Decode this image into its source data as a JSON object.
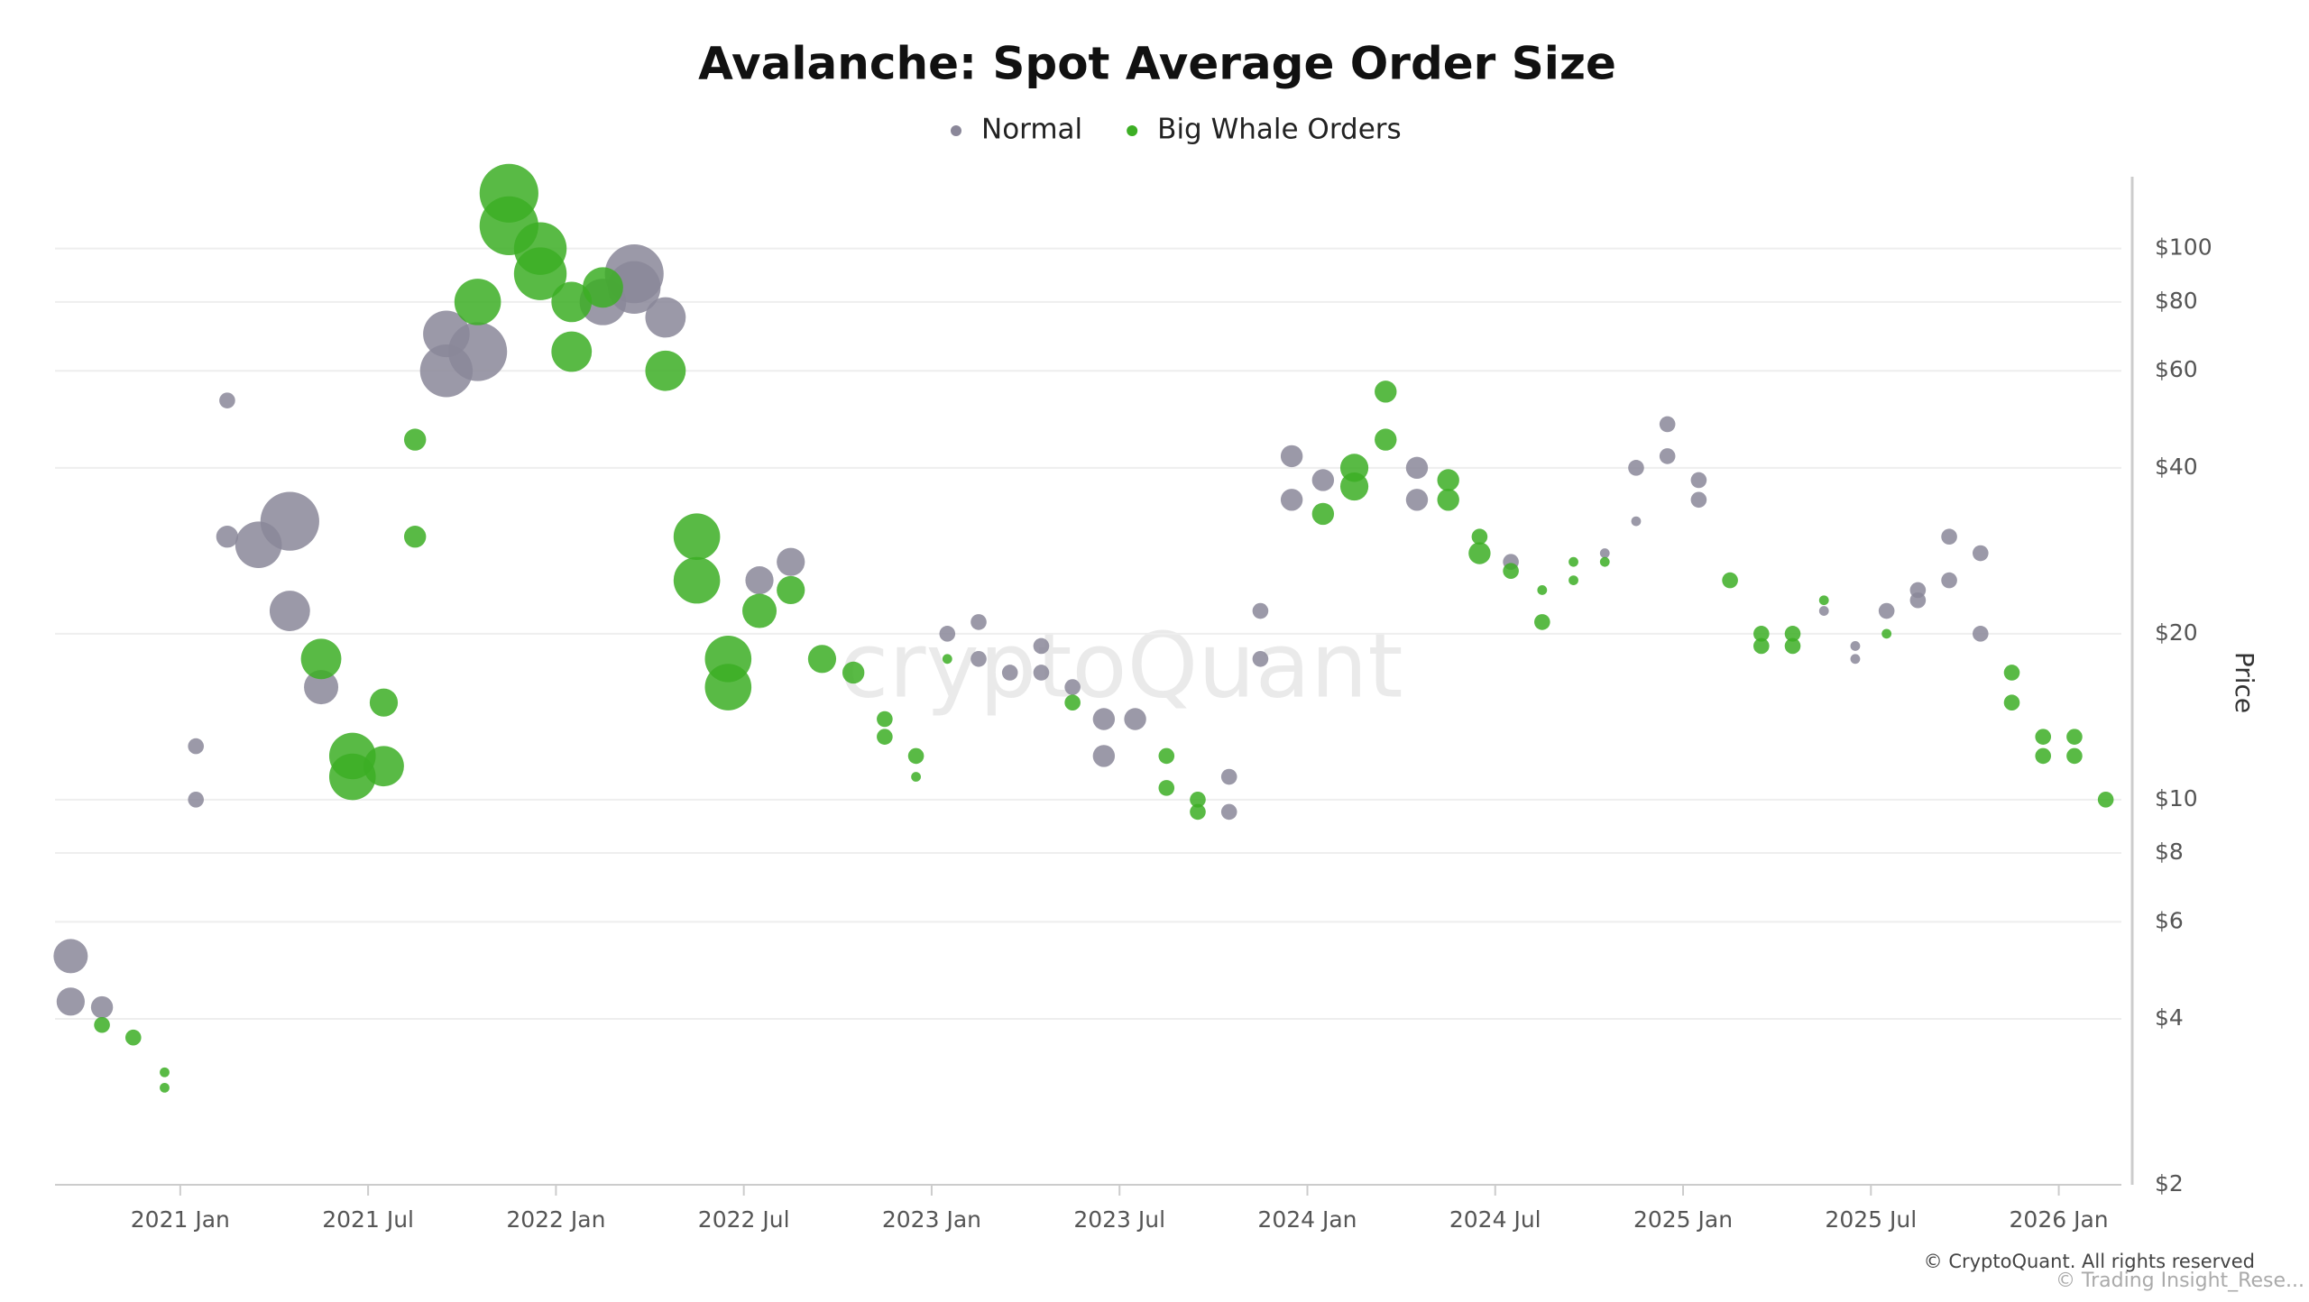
{
  "chart_data": {
    "type": "scatter",
    "title": "Avalanche: Spot Average Order Size",
    "y_label": "Price",
    "watermark": "cryptoQuant",
    "copyright": "© CryptoQuant. All rights reserved",
    "credit": "© Trading Insight_Rese...",
    "log_y": true,
    "grid": true,
    "legend": "top",
    "xlim": [
      "2020-09",
      "2026-03"
    ],
    "xticks": [
      {
        "value": "2021-01",
        "label": "2021 Jan"
      },
      {
        "value": "2021-07",
        "label": "2021 Jul"
      },
      {
        "value": "2022-01",
        "label": "2022 Jan"
      },
      {
        "value": "2022-07",
        "label": "2022 Jul"
      },
      {
        "value": "2023-01",
        "label": "2023 Jan"
      },
      {
        "value": "2023-07",
        "label": "2023 Jul"
      },
      {
        "value": "2024-01",
        "label": "2024 Jan"
      },
      {
        "value": "2024-07",
        "label": "2024 Jul"
      },
      {
        "value": "2025-01",
        "label": "2025 Jan"
      },
      {
        "value": "2025-07",
        "label": "2025 Jul"
      },
      {
        "value": "2026-01",
        "label": "2026 Jan"
      }
    ],
    "ylim": [
      2,
      135
    ],
    "yticks": [
      {
        "value": 2,
        "label": "$2"
      },
      {
        "value": 4,
        "label": "$4"
      },
      {
        "value": 6,
        "label": "$6"
      },
      {
        "value": 8,
        "label": "$8"
      },
      {
        "value": 10,
        "label": "$10"
      },
      {
        "value": 20,
        "label": "$20"
      },
      {
        "value": 40,
        "label": "$40"
      },
      {
        "value": 60,
        "label": "$60"
      },
      {
        "value": 80,
        "label": "$80"
      },
      {
        "value": 100,
        "label": "$100"
      }
    ],
    "series": [
      {
        "name": "Normal",
        "color": "#8a8799",
        "x": [
          "2020-09",
          "2020-09",
          "2020-10",
          "2021-01",
          "2021-01",
          "2021-02",
          "2021-02",
          "2021-03",
          "2021-04",
          "2021-04",
          "2021-05",
          "2021-09",
          "2021-09",
          "2021-10",
          "2022-02",
          "2022-03",
          "2022-03",
          "2022-04",
          "2022-07",
          "2022-08",
          "2023-01",
          "2023-02",
          "2023-02",
          "2023-03",
          "2023-04",
          "2023-04",
          "2023-05",
          "2023-06",
          "2023-06",
          "2023-07",
          "2023-10",
          "2023-10",
          "2023-11",
          "2023-11",
          "2023-12",
          "2023-12",
          "2024-01",
          "2024-04",
          "2024-04",
          "2024-07",
          "2024-10",
          "2024-11",
          "2024-11",
          "2024-12",
          "2024-12",
          "2025-01",
          "2025-01",
          "2025-05",
          "2025-06",
          "2025-06",
          "2025-07",
          "2025-08",
          "2025-08",
          "2025-09",
          "2025-09",
          "2025-10",
          "2025-10"
        ],
        "values": [
          5.2,
          4.3,
          4.2,
          10,
          12.5,
          53,
          30,
          29,
          32,
          22,
          16,
          60,
          70,
          65,
          80,
          85,
          90,
          75,
          25,
          27,
          20,
          21,
          18,
          17,
          19,
          17,
          16,
          12,
          14,
          14,
          9.5,
          11,
          18,
          22,
          35,
          42,
          38,
          40,
          35,
          27,
          28,
          32,
          40,
          48,
          42,
          38,
          35,
          22,
          19,
          18,
          22,
          24,
          23,
          25,
          30,
          28,
          20
        ],
        "sizes": [
          5,
          4,
          3,
          2,
          2,
          2,
          3,
          7,
          9,
          6,
          5,
          8,
          7,
          9,
          7,
          8,
          9,
          6,
          4,
          4,
          2,
          2,
          2,
          2,
          2,
          2,
          2,
          3,
          3,
          3,
          2,
          2,
          2,
          2,
          3,
          3,
          3,
          3,
          3,
          2,
          1,
          1,
          2,
          2,
          2,
          2,
          2,
          1,
          1,
          1,
          2,
          2,
          2,
          2,
          2,
          2,
          2
        ]
      },
      {
        "name": "Big Whale Orders",
        "color": "#3cae24",
        "x": [
          "2020-10",
          "2020-11",
          "2020-12",
          "2020-12",
          "2021-05",
          "2021-06",
          "2021-06",
          "2021-07",
          "2021-07",
          "2021-08",
          "2021-08",
          "2021-10",
          "2021-11",
          "2021-11",
          "2021-12",
          "2021-12",
          "2022-01",
          "2022-01",
          "2022-02",
          "2022-04",
          "2022-05",
          "2022-05",
          "2022-06",
          "2022-06",
          "2022-07",
          "2022-08",
          "2022-09",
          "2022-10",
          "2022-11",
          "2022-11",
          "2022-12",
          "2022-12",
          "2023-01",
          "2023-05",
          "2023-08",
          "2023-08",
          "2023-09",
          "2023-09",
          "2024-01",
          "2024-02",
          "2024-02",
          "2024-03",
          "2024-03",
          "2024-05",
          "2024-05",
          "2024-06",
          "2024-06",
          "2024-07",
          "2024-08",
          "2024-08",
          "2024-09",
          "2024-09",
          "2024-10",
          "2025-02",
          "2025-03",
          "2025-03",
          "2025-04",
          "2025-04",
          "2025-05",
          "2025-07",
          "2025-11",
          "2025-11",
          "2025-12",
          "2025-12",
          "2026-01",
          "2026-01",
          "2026-02"
        ],
        "values": [
          3.9,
          3.7,
          3.2,
          3.0,
          18,
          12,
          11,
          11.5,
          15,
          30,
          45,
          80,
          126,
          110,
          100,
          90,
          65,
          80,
          85,
          60,
          30,
          25,
          18,
          16,
          22,
          24,
          18,
          17,
          14,
          13,
          12,
          11,
          18,
          15,
          12,
          10.5,
          10,
          9.5,
          33,
          37,
          40,
          55,
          45,
          35,
          38,
          28,
          30,
          26,
          21,
          24,
          25,
          27,
          27,
          25,
          20,
          19,
          20,
          19,
          23,
          20,
          17,
          15,
          13,
          12,
          13,
          12,
          10
        ],
        "sizes": [
          2,
          2,
          1,
          1,
          6,
          7,
          7,
          6,
          4,
          3,
          3,
          7,
          9,
          9,
          8,
          8,
          6,
          6,
          6,
          6,
          7,
          7,
          7,
          7,
          5,
          4,
          4,
          3,
          2,
          2,
          2,
          1,
          1,
          2,
          2,
          2,
          2,
          2,
          3,
          4,
          4,
          3,
          3,
          3,
          3,
          3,
          2,
          2,
          2,
          1,
          1,
          1,
          1,
          2,
          2,
          2,
          2,
          2,
          1,
          1,
          2,
          2,
          2,
          2,
          2,
          2,
          2
        ]
      }
    ]
  }
}
